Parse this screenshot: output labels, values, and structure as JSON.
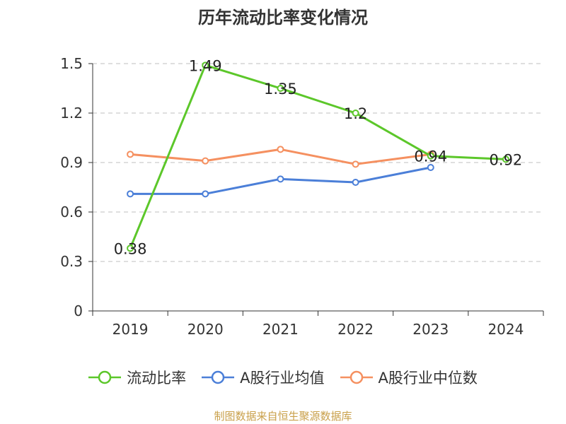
{
  "chart_data": {
    "type": "line",
    "title": "历年流动比率变化情况",
    "categories": [
      "2019",
      "2020",
      "2021",
      "2022",
      "2023",
      "2024"
    ],
    "ylim": [
      0,
      1.5
    ],
    "yticks": [
      "0",
      "0.3",
      "0.6",
      "0.9",
      "1.2",
      "1.5"
    ],
    "grid": true,
    "legend_position": "bottom",
    "series": [
      {
        "name": "流动比率",
        "color": "#5cc72a",
        "values": [
          0.38,
          1.49,
          1.35,
          1.2,
          0.94,
          0.92
        ],
        "labels": [
          "0.38",
          "1.49",
          "1.35",
          "1.2",
          "0.94",
          "0.92"
        ]
      },
      {
        "name": "A股行业均值",
        "color": "#4b7fd8",
        "values": [
          0.71,
          0.71,
          0.8,
          0.78,
          0.87,
          null
        ]
      },
      {
        "name": "A股行业中位数",
        "color": "#f59060",
        "values": [
          0.95,
          0.91,
          0.98,
          0.89,
          0.95,
          null
        ]
      }
    ]
  },
  "source": "制图数据来自恒生聚源数据库"
}
